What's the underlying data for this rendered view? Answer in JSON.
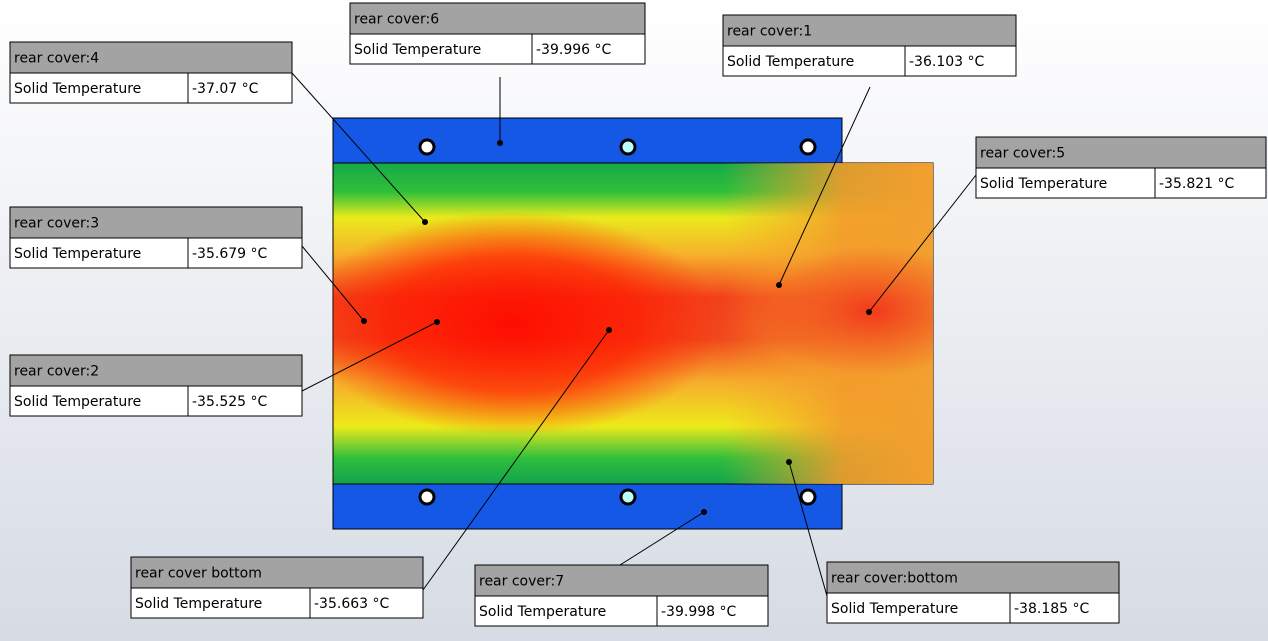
{
  "probes": [
    {
      "name": "rear cover:4",
      "label": "Solid Temperature",
      "value": "-37.07 °C"
    },
    {
      "name": "rear cover:6",
      "label": "Solid Temperature",
      "value": "-39.996 °C"
    },
    {
      "name": "rear cover:1",
      "label": "Solid Temperature",
      "value": "-36.103 °C"
    },
    {
      "name": "rear cover:5",
      "label": "Solid Temperature",
      "value": "-35.821 °C"
    },
    {
      "name": "rear cover:3",
      "label": "Solid Temperature",
      "value": "-35.679 °C"
    },
    {
      "name": "rear cover:2",
      "label": "Solid Temperature",
      "value": "-35.525 °C"
    },
    {
      "name": "rear cover bottom",
      "label": "Solid Temperature",
      "value": "-35.663 °C"
    },
    {
      "name": "rear cover:7",
      "label": "Solid Temperature",
      "value": "-39.998 °C"
    },
    {
      "name": "rear cover:bottom",
      "label": "Solid Temperature",
      "value": "-38.185 °C"
    }
  ]
}
